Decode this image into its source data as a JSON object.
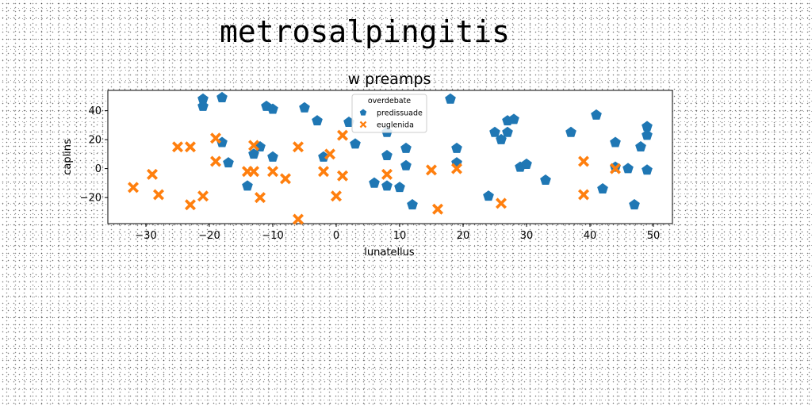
{
  "figure": {
    "suptitle": "metrosalpingitis"
  },
  "chart_data": {
    "type": "scatter",
    "title": "w preamps",
    "xlabel": "lunatellus",
    "ylabel": "caplins",
    "xlim": [
      -36,
      53
    ],
    "ylim": [
      -38,
      54
    ],
    "xticks": [
      -30,
      -20,
      -10,
      0,
      10,
      20,
      30,
      40,
      50
    ],
    "yticks": [
      -20,
      0,
      20,
      40
    ],
    "grid": false,
    "legend": {
      "title": "overdebate",
      "placement": "top-center"
    },
    "series": [
      {
        "name": "predissuade",
        "marker": "pentagon",
        "color": "#1f77b4",
        "points": [
          [
            -21,
            48
          ],
          [
            -21,
            43
          ],
          [
            -18,
            49
          ],
          [
            -18,
            18
          ],
          [
            -17,
            4
          ],
          [
            -14,
            -12
          ],
          [
            -13,
            10
          ],
          [
            -12,
            15
          ],
          [
            -11,
            43
          ],
          [
            -10,
            41
          ],
          [
            -10,
            8
          ],
          [
            -5,
            42
          ],
          [
            -3,
            33
          ],
          [
            -2,
            8
          ],
          [
            2,
            32
          ],
          [
            3,
            17
          ],
          [
            6,
            -10
          ],
          [
            8,
            25
          ],
          [
            8,
            9
          ],
          [
            8,
            -12
          ],
          [
            10,
            -13
          ],
          [
            11,
            2
          ],
          [
            11,
            14
          ],
          [
            12,
            -25
          ],
          [
            18,
            48
          ],
          [
            19,
            14
          ],
          [
            19,
            4
          ],
          [
            24,
            -19
          ],
          [
            25,
            25
          ],
          [
            26,
            20
          ],
          [
            27,
            33
          ],
          [
            27,
            25
          ],
          [
            28,
            34
          ],
          [
            29,
            1
          ],
          [
            30,
            3
          ],
          [
            33,
            -8
          ],
          [
            37,
            25
          ],
          [
            41,
            37
          ],
          [
            42,
            -14
          ],
          [
            44,
            18
          ],
          [
            44,
            1
          ],
          [
            46,
            0
          ],
          [
            47,
            -25
          ],
          [
            48,
            15
          ],
          [
            49,
            29
          ],
          [
            49,
            23
          ],
          [
            49,
            -1
          ]
        ]
      },
      {
        "name": "euglenida",
        "marker": "x-filled",
        "color": "#ff7f0e",
        "points": [
          [
            -32,
            -13
          ],
          [
            -29,
            -4
          ],
          [
            -28,
            -18
          ],
          [
            -25,
            15
          ],
          [
            -23,
            15
          ],
          [
            -23,
            -25
          ],
          [
            -21,
            -19
          ],
          [
            -19,
            21
          ],
          [
            -19,
            5
          ],
          [
            -14,
            -2
          ],
          [
            -13,
            -2
          ],
          [
            -13,
            16
          ],
          [
            -12,
            -20
          ],
          [
            -10,
            -2
          ],
          [
            -8,
            -7
          ],
          [
            -6,
            -35
          ],
          [
            -6,
            15
          ],
          [
            -2,
            -2
          ],
          [
            -1,
            10
          ],
          [
            0,
            -19
          ],
          [
            1,
            23
          ],
          [
            1,
            -5
          ],
          [
            8,
            -4
          ],
          [
            15,
            -1
          ],
          [
            16,
            -28
          ],
          [
            19,
            0
          ],
          [
            26,
            -24
          ],
          [
            39,
            5
          ],
          [
            39,
            -18
          ],
          [
            44,
            0
          ]
        ]
      }
    ]
  }
}
